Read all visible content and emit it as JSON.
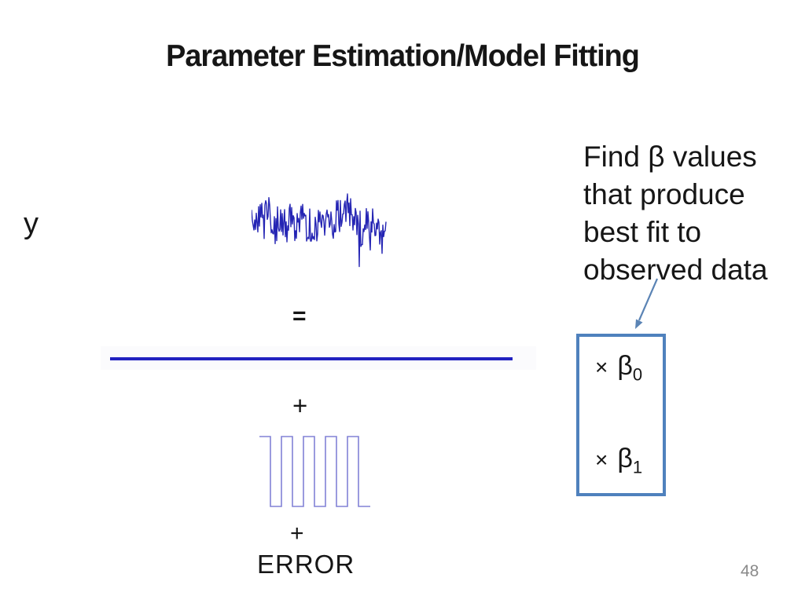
{
  "slide": {
    "title": "Parameter Estimation/Model Fitting",
    "y_axis_label": "y",
    "equation": {
      "equals": "=",
      "plus_1": "+",
      "plus_2": "+",
      "error_label": "ERROR"
    },
    "annotation": {
      "lines": [
        "Find β values",
        "that produce",
        "best fit to",
        "observed data"
      ]
    },
    "beta_box": {
      "row_0": {
        "times": "×",
        "beta": "β",
        "sub": "0"
      },
      "row_1": {
        "times": "×",
        "beta": "β",
        "sub": "1"
      }
    },
    "page_number": "48",
    "graphics": {
      "noisy_signal": "noisy-signal-waveform",
      "constant_line": "constant-baseline",
      "square_wave": "square-wave-regressor",
      "arrow": "annotation-arrow"
    },
    "colors": {
      "signal_blue": "#2525b4",
      "line_blue": "#2121c0",
      "square_wave_blue": "#8282d6",
      "box_border_blue": "#4f81bd",
      "arrow_blue": "#5b84b5",
      "text_black": "#161616",
      "page_number_gray": "#8a8a8a"
    }
  }
}
